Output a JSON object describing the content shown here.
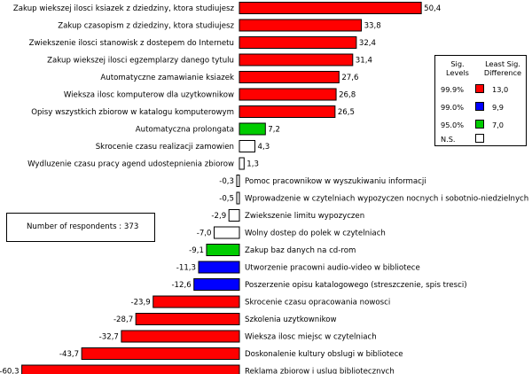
{
  "chart_data": {
    "type": "bar",
    "orientation": "horizontal",
    "xlim": [
      -60.3,
      50.4
    ],
    "categories": [
      "Zakup wiekszej ilosci ksiazek z dziedziny, ktora studiujesz",
      "Zakup czasopism z dziedziny, ktora studiujesz",
      "Zwiekszenie ilosci stanowisk z dostepem do Internetu",
      "Zakup wiekszej ilosci egzemplarzy danego tytulu",
      "Automatyczne zamawianie ksiazek",
      "Wieksza ilosc komputerow dla uzytkownikow",
      "Opisy wszystkich zbiorow w katalogu komputerowym",
      "Automatyczna prolongata",
      "Skrocenie czasu realizacji zamowien",
      "Wydluzenie czasu pracy agend udostepnienia zbiorow",
      "Pomoc pracownikow w wyszukiwaniu informacji",
      "Wprowadzenie w czytelniach wypozyczen nocnych i sobotnio-niedzielnych",
      "Zwiekszenie limitu wypozyczen",
      "Wolny dostep do polek w czytelniach",
      "Zakup baz danych na cd-rom",
      "Utworzenie pracowni audio-video w bibliotece",
      "Poszerzenie opisu katalogowego (streszczenie, spis tresci)",
      "Skrocenie czasu opracowania nowosci",
      "Szkolenia uzytkownikow",
      "Wieksza ilosc miejsc w czytelniach",
      "Doskonalenie kultury obslugi w bibliotece",
      "Reklama zbiorow i uslug bibliotecznych"
    ],
    "values": [
      50.4,
      33.8,
      32.4,
      31.4,
      27.6,
      26.8,
      26.5,
      7.2,
      4.3,
      1.3,
      -0.3,
      -0.5,
      -2.9,
      -7.0,
      -9.1,
      -11.3,
      -12.6,
      -23.9,
      -28.7,
      -32.7,
      -43.7,
      -60.3
    ],
    "value_labels": [
      "50,4",
      "33,8",
      "32,4",
      "31,4",
      "27,6",
      "26,8",
      "26,5",
      "7,2",
      "4,3",
      "1,3",
      "-0,3",
      "-0,5",
      "-2,9",
      "-7,0",
      "-9,1",
      "-11,3",
      "-12,6",
      "-23,9",
      "-28,7",
      "-32,7",
      "-43,7",
      "-60,3"
    ],
    "bar_colors": [
      "#ff0000",
      "#ff0000",
      "#ff0000",
      "#ff0000",
      "#ff0000",
      "#ff0000",
      "#ff0000",
      "#00cc00",
      "#ffffff",
      "#ffffff",
      "#ffffff",
      "#ffffff",
      "#ffffff",
      "#ffffff",
      "#00cc00",
      "#0000ff",
      "#0000ff",
      "#ff0000",
      "#ff0000",
      "#ff0000",
      "#ff0000",
      "#ff0000"
    ],
    "legend": {
      "header_levels": "Sig.\nLevels",
      "header_diff": "Least Sig.\nDifference",
      "rows": [
        {
          "level": "99.9%",
          "color": "#ff0000",
          "difference": "13,0"
        },
        {
          "level": "99.0%",
          "color": "#0000ff",
          "difference": "9,9"
        },
        {
          "level": "95.0%",
          "color": "#00cc00",
          "difference": "7,0"
        },
        {
          "level": "N.S.",
          "color": "#ffffff",
          "difference": ""
        }
      ]
    },
    "respondents_label": "Number of respondents : 373"
  }
}
